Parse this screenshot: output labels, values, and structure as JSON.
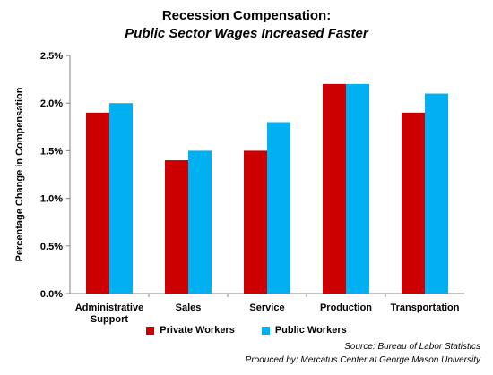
{
  "chart_data": {
    "type": "bar",
    "title_line1": "Recession Compensation:",
    "title_line2": "Public Sector Wages Increased Faster",
    "ylabel": "Percentage  Change in Compensation",
    "ylim": [
      0,
      2.5
    ],
    "yticks": [
      "0.0%",
      "0.5%",
      "1.0%",
      "1.5%",
      "2.0%",
      "2.5%"
    ],
    "categories": [
      [
        "Administrative",
        "Support"
      ],
      [
        "Sales"
      ],
      [
        "Service"
      ],
      [
        "Production"
      ],
      [
        "Transportation"
      ]
    ],
    "series": [
      {
        "name": "Private Workers",
        "color": "#cc0000",
        "values": [
          1.9,
          1.4,
          1.5,
          2.2,
          1.9
        ]
      },
      {
        "name": "Public Workers",
        "color": "#00b0f0",
        "values": [
          2.0,
          1.5,
          1.8,
          2.2,
          2.1
        ]
      }
    ],
    "grid": false,
    "legend_position": "bottom"
  },
  "source": {
    "line1": "Source: Bureau of Labor Statistics",
    "line2": "Produced by: Mercatus Center at George Mason University"
  }
}
